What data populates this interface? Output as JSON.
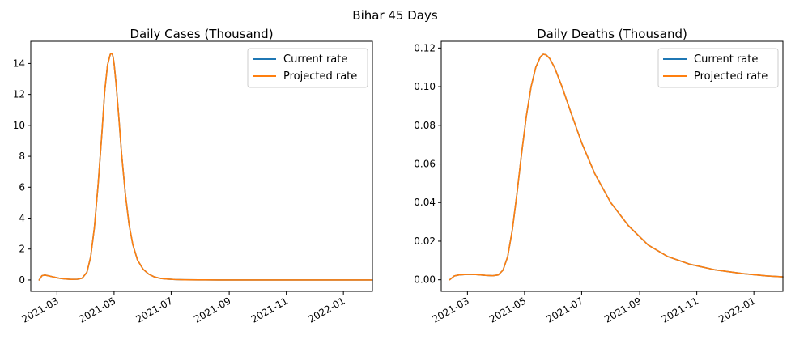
{
  "suptitle": "Bihar 45 Days",
  "colors": {
    "current": "#1f77b4",
    "projected": "#ff7f0e"
  },
  "chart_data": [
    {
      "type": "line",
      "title": "Daily Cases (Thousand)",
      "xlabel": "",
      "ylabel": "",
      "x_type": "date",
      "xlim": [
        "2021-02-01",
        "2022-02-01"
      ],
      "ylim": [
        -0.735,
        15.435
      ],
      "x_ticks": [
        "2021-03-01",
        "2021-05-01",
        "2021-07-01",
        "2021-09-01",
        "2021-11-01",
        "2022-01-01"
      ],
      "x_tick_labels": [
        "2021-03",
        "2021-05",
        "2021-07",
        "2021-09",
        "2021-11",
        "2022-01"
      ],
      "y_ticks": [
        0,
        2,
        4,
        6,
        8,
        10,
        12,
        14
      ],
      "y_tick_labels": [
        "0",
        "2",
        "4",
        "6",
        "8",
        "10",
        "12",
        "14"
      ],
      "legend": {
        "placement": "top-right"
      },
      "grid": false,
      "series": [
        {
          "name": "Current rate",
          "color": "#1f77b4",
          "x": [
            "2021-02-10",
            "2021-02-13",
            "2021-02-16",
            "2021-02-20",
            "2021-02-25",
            "2021-03-03",
            "2021-03-09",
            "2021-03-16",
            "2021-03-23",
            "2021-03-28",
            "2021-04-02",
            "2021-04-06",
            "2021-04-10",
            "2021-04-14",
            "2021-04-18",
            "2021-04-21",
            "2021-04-24",
            "2021-04-27",
            "2021-04-29",
            "2021-04-30",
            "2021-05-01",
            "2021-05-03",
            "2021-05-06",
            "2021-05-09",
            "2021-05-13",
            "2021-05-17",
            "2021-05-21",
            "2021-05-26",
            "2021-06-01",
            "2021-06-07",
            "2021-06-13",
            "2021-06-20",
            "2021-06-27",
            "2021-07-05",
            "2021-07-15",
            "2021-07-30",
            "2021-08-20",
            "2021-09-20",
            "2021-10-20",
            "2021-11-20",
            "2021-12-20",
            "2022-01-20",
            "2022-02-01"
          ],
          "y": [
            0.0,
            0.28,
            0.32,
            0.27,
            0.2,
            0.12,
            0.07,
            0.04,
            0.05,
            0.12,
            0.5,
            1.5,
            3.4,
            6.2,
            9.5,
            12.2,
            13.9,
            14.6,
            14.65,
            14.4,
            14.0,
            12.8,
            10.6,
            8.2,
            5.6,
            3.6,
            2.3,
            1.3,
            0.7,
            0.38,
            0.2,
            0.1,
            0.06,
            0.03,
            0.015,
            0.007,
            0.003,
            0.001,
            0.0,
            0.0,
            0.0,
            0.0,
            0.0
          ]
        },
        {
          "name": "Projected rate",
          "color": "#ff7f0e",
          "x": [
            "2021-02-10",
            "2021-02-13",
            "2021-02-16",
            "2021-02-20",
            "2021-02-25",
            "2021-03-03",
            "2021-03-09",
            "2021-03-16",
            "2021-03-23",
            "2021-03-28",
            "2021-04-02",
            "2021-04-06",
            "2021-04-10",
            "2021-04-14",
            "2021-04-18",
            "2021-04-21",
            "2021-04-24",
            "2021-04-27",
            "2021-04-29",
            "2021-04-30",
            "2021-05-01",
            "2021-05-03",
            "2021-05-06",
            "2021-05-09",
            "2021-05-13",
            "2021-05-17",
            "2021-05-21",
            "2021-05-26",
            "2021-06-01",
            "2021-06-07",
            "2021-06-13",
            "2021-06-20",
            "2021-06-27",
            "2021-07-05",
            "2021-07-15",
            "2021-07-30",
            "2021-08-20",
            "2021-09-20",
            "2021-10-20",
            "2021-11-20",
            "2021-12-20",
            "2022-01-20",
            "2022-02-01"
          ],
          "y": [
            0.0,
            0.28,
            0.32,
            0.27,
            0.2,
            0.12,
            0.07,
            0.04,
            0.05,
            0.12,
            0.5,
            1.5,
            3.4,
            6.2,
            9.5,
            12.2,
            13.9,
            14.6,
            14.65,
            14.4,
            14.0,
            12.8,
            10.6,
            8.2,
            5.6,
            3.6,
            2.3,
            1.3,
            0.7,
            0.38,
            0.2,
            0.1,
            0.06,
            0.03,
            0.015,
            0.007,
            0.003,
            0.001,
            0.0,
            0.0,
            0.0,
            0.0,
            0.0
          ]
        }
      ]
    },
    {
      "type": "line",
      "title": "Daily Deaths (Thousand)",
      "xlabel": "",
      "ylabel": "",
      "x_type": "date",
      "xlim": [
        "2021-02-01",
        "2022-02-01"
      ],
      "ylim": [
        -0.006,
        0.1235
      ],
      "x_ticks": [
        "2021-03-01",
        "2021-05-01",
        "2021-07-01",
        "2021-09-01",
        "2021-11-01",
        "2022-01-01"
      ],
      "x_tick_labels": [
        "2021-03",
        "2021-05",
        "2021-07",
        "2021-09",
        "2021-11",
        "2022-01"
      ],
      "y_ticks": [
        0.0,
        0.02,
        0.04,
        0.06,
        0.08,
        0.1,
        0.12
      ],
      "y_tick_labels": [
        "0.00",
        "0.02",
        "0.04",
        "0.06",
        "0.08",
        "0.10",
        "0.12"
      ],
      "legend": {
        "placement": "top-right"
      },
      "grid": false,
      "series": [
        {
          "name": "Current rate",
          "color": "#1f77b4",
          "x": [
            "2021-02-10",
            "2021-02-15",
            "2021-02-20",
            "2021-03-01",
            "2021-03-10",
            "2021-03-20",
            "2021-03-28",
            "2021-04-03",
            "2021-04-08",
            "2021-04-13",
            "2021-04-18",
            "2021-04-23",
            "2021-04-28",
            "2021-05-03",
            "2021-05-08",
            "2021-05-13",
            "2021-05-18",
            "2021-05-21",
            "2021-05-24",
            "2021-05-28",
            "2021-06-02",
            "2021-06-10",
            "2021-06-20",
            "2021-07-01",
            "2021-07-15",
            "2021-08-01",
            "2021-08-20",
            "2021-09-10",
            "2021-10-01",
            "2021-10-25",
            "2021-11-20",
            "2021-12-20",
            "2022-01-15",
            "2022-02-01"
          ],
          "y": [
            0.0,
            0.002,
            0.0025,
            0.0028,
            0.0027,
            0.0023,
            0.0021,
            0.0025,
            0.005,
            0.012,
            0.026,
            0.045,
            0.066,
            0.085,
            0.1,
            0.11,
            0.1155,
            0.1168,
            0.1165,
            0.1145,
            0.11,
            0.1,
            0.086,
            0.071,
            0.055,
            0.04,
            0.028,
            0.018,
            0.012,
            0.008,
            0.0052,
            0.0032,
            0.002,
            0.0015
          ]
        },
        {
          "name": "Projected rate",
          "color": "#ff7f0e",
          "x": [
            "2021-02-10",
            "2021-02-15",
            "2021-02-20",
            "2021-03-01",
            "2021-03-10",
            "2021-03-20",
            "2021-03-28",
            "2021-04-03",
            "2021-04-08",
            "2021-04-13",
            "2021-04-18",
            "2021-04-23",
            "2021-04-28",
            "2021-05-03",
            "2021-05-08",
            "2021-05-13",
            "2021-05-18",
            "2021-05-21",
            "2021-05-24",
            "2021-05-28",
            "2021-06-02",
            "2021-06-10",
            "2021-06-20",
            "2021-07-01",
            "2021-07-15",
            "2021-08-01",
            "2021-08-20",
            "2021-09-10",
            "2021-10-01",
            "2021-10-25",
            "2021-11-20",
            "2021-12-20",
            "2022-01-15",
            "2022-02-01"
          ],
          "y": [
            0.0,
            0.002,
            0.0025,
            0.0028,
            0.0027,
            0.0023,
            0.0021,
            0.0025,
            0.005,
            0.012,
            0.026,
            0.045,
            0.066,
            0.085,
            0.1,
            0.11,
            0.1155,
            0.1168,
            0.1165,
            0.1145,
            0.11,
            0.1,
            0.086,
            0.071,
            0.055,
            0.04,
            0.028,
            0.018,
            0.012,
            0.008,
            0.0052,
            0.0032,
            0.002,
            0.0015
          ]
        }
      ]
    }
  ]
}
